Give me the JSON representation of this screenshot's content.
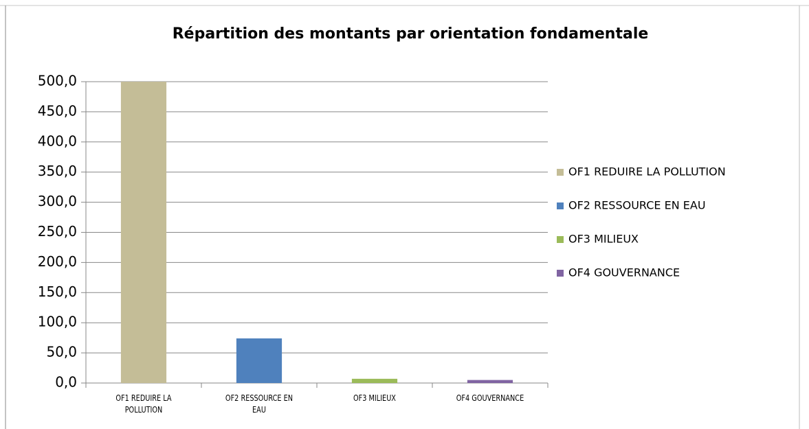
{
  "chart_data": {
    "type": "bar",
    "title": "Répartition des montants par orientation fondamentale",
    "categories": [
      "OF1 REDUIRE LA POLLUTION",
      "OF2 RESSOURCE EN EAU",
      "OF3 MILIEUX",
      "OF4 GOUVERNANCE"
    ],
    "values": [
      500,
      74,
      7,
      5
    ],
    "colors": [
      "#c4bd97",
      "#4f81bd",
      "#9bbb59",
      "#8064a2"
    ],
    "ylim": [
      0,
      500
    ],
    "yticks": [
      {
        "value": 0,
        "label": "0,0"
      },
      {
        "value": 50,
        "label": "50,0"
      },
      {
        "value": 100,
        "label": "100,0"
      },
      {
        "value": 150,
        "label": "150,0"
      },
      {
        "value": 200,
        "label": "200,0"
      },
      {
        "value": 250,
        "label": "250,0"
      },
      {
        "value": 300,
        "label": "300,0"
      },
      {
        "value": 350,
        "label": "350,0"
      },
      {
        "value": 400,
        "label": "400,0"
      },
      {
        "value": 450,
        "label": "450,0"
      },
      {
        "value": 500,
        "label": "500,0"
      }
    ],
    "grid": true,
    "legend": "right"
  }
}
